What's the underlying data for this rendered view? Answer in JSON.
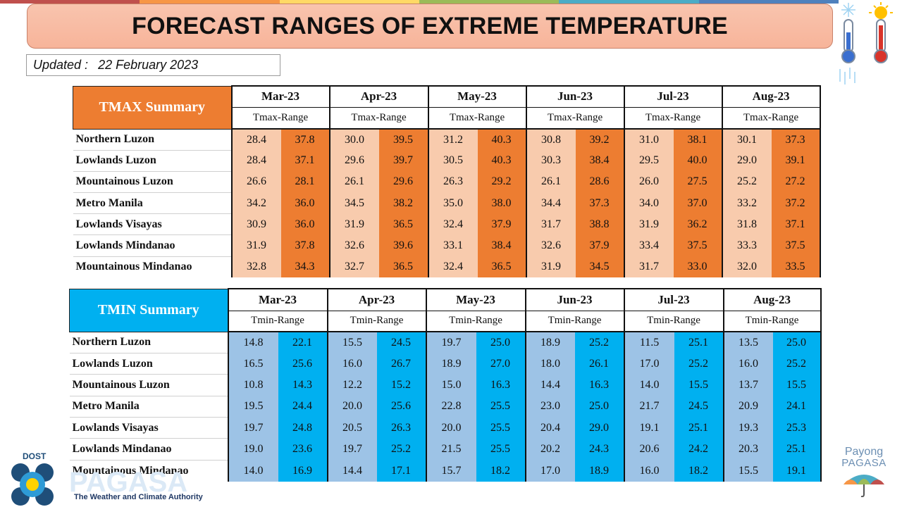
{
  "title": "FORECAST RANGES OF EXTREME TEMPERATURE",
  "updated_label": "Updated :",
  "updated_date": "22 February 2023",
  "months": [
    "Mar-23",
    "Apr-23",
    "May-23",
    "Jun-23",
    "Jul-23",
    "Aug-23"
  ],
  "regions": [
    "Northern Luzon",
    "Lowlands Luzon",
    "Mountainous Luzon",
    "Metro Manila",
    "Lowlands Visayas",
    "Lowlands Mindanao",
    "Mountainous Mindanao"
  ],
  "tmax": {
    "title": "TMAX Summary",
    "range_label": "Tmax-Range",
    "rows": [
      [
        [
          "28.4",
          "37.8"
        ],
        [
          "30.0",
          "39.5"
        ],
        [
          "31.2",
          "40.3"
        ],
        [
          "30.8",
          "39.2"
        ],
        [
          "31.0",
          "38.1"
        ],
        [
          "30.1",
          "37.3"
        ]
      ],
      [
        [
          "28.4",
          "37.1"
        ],
        [
          "29.6",
          "39.7"
        ],
        [
          "30.5",
          "40.3"
        ],
        [
          "30.3",
          "38.4"
        ],
        [
          "29.5",
          "40.0"
        ],
        [
          "29.0",
          "39.1"
        ]
      ],
      [
        [
          "26.6",
          "28.1"
        ],
        [
          "26.1",
          "29.6"
        ],
        [
          "26.3",
          "29.2"
        ],
        [
          "26.1",
          "28.6"
        ],
        [
          "26.0",
          "27.5"
        ],
        [
          "25.2",
          "27.2"
        ]
      ],
      [
        [
          "34.2",
          "36.0"
        ],
        [
          "34.5",
          "38.2"
        ],
        [
          "35.0",
          "38.0"
        ],
        [
          "34.4",
          "37.3"
        ],
        [
          "34.0",
          "37.0"
        ],
        [
          "33.2",
          "37.2"
        ]
      ],
      [
        [
          "30.9",
          "36.0"
        ],
        [
          "31.9",
          "36.5"
        ],
        [
          "32.4",
          "37.9"
        ],
        [
          "31.7",
          "38.8"
        ],
        [
          "31.9",
          "36.2"
        ],
        [
          "31.8",
          "37.1"
        ]
      ],
      [
        [
          "31.9",
          "37.8"
        ],
        [
          "32.6",
          "39.6"
        ],
        [
          "33.1",
          "38.4"
        ],
        [
          "32.6",
          "37.9"
        ],
        [
          "33.4",
          "37.5"
        ],
        [
          "33.3",
          "37.5"
        ]
      ],
      [
        [
          "32.8",
          "34.3"
        ],
        [
          "32.7",
          "36.5"
        ],
        [
          "32.4",
          "36.5"
        ],
        [
          "31.9",
          "34.5"
        ],
        [
          "31.7",
          "33.0"
        ],
        [
          "32.0",
          "33.5"
        ]
      ]
    ]
  },
  "tmin": {
    "title": "TMIN Summary",
    "range_label": "Tmin-Range",
    "rows": [
      [
        [
          "14.8",
          "22.1"
        ],
        [
          "15.5",
          "24.5"
        ],
        [
          "19.7",
          "25.0"
        ],
        [
          "18.9",
          "25.2"
        ],
        [
          "11.5",
          "25.1"
        ],
        [
          "13.5",
          "25.0"
        ]
      ],
      [
        [
          "16.5",
          "25.6"
        ],
        [
          "16.0",
          "26.7"
        ],
        [
          "18.9",
          "27.0"
        ],
        [
          "18.0",
          "26.1"
        ],
        [
          "17.0",
          "25.2"
        ],
        [
          "16.0",
          "25.2"
        ]
      ],
      [
        [
          "10.8",
          "14.3"
        ],
        [
          "12.2",
          "15.2"
        ],
        [
          "15.0",
          "16.3"
        ],
        [
          "14.4",
          "16.3"
        ],
        [
          "14.0",
          "15.5"
        ],
        [
          "13.7",
          "15.5"
        ]
      ],
      [
        [
          "19.5",
          "24.4"
        ],
        [
          "20.0",
          "25.6"
        ],
        [
          "22.8",
          "25.5"
        ],
        [
          "23.0",
          "25.0"
        ],
        [
          "21.7",
          "24.5"
        ],
        [
          "20.9",
          "24.1"
        ]
      ],
      [
        [
          "19.7",
          "24.8"
        ],
        [
          "20.5",
          "26.3"
        ],
        [
          "20.0",
          "25.5"
        ],
        [
          "20.4",
          "29.0"
        ],
        [
          "19.1",
          "25.1"
        ],
        [
          "19.3",
          "25.3"
        ]
      ],
      [
        [
          "19.0",
          "23.6"
        ],
        [
          "19.7",
          "25.2"
        ],
        [
          "21.5",
          "25.5"
        ],
        [
          "20.2",
          "24.3"
        ],
        [
          "20.6",
          "24.2"
        ],
        [
          "20.3",
          "25.1"
        ]
      ],
      [
        [
          "14.0",
          "16.9"
        ],
        [
          "14.4",
          "17.1"
        ],
        [
          "15.7",
          "18.2"
        ],
        [
          "17.0",
          "18.9"
        ],
        [
          "16.0",
          "18.2"
        ],
        [
          "15.5",
          "19.1"
        ]
      ]
    ]
  },
  "logos": {
    "dost_label": "DOST",
    "pagasa_text": "PAGASA",
    "tagline": "The Weather and Climate Authority",
    "payong": "Payong",
    "payong_pagasa": "PAGASA"
  },
  "icons": {
    "corner": "thermometer-cold-hot-icon",
    "dost": "dost-pagasa-logo",
    "umbrella": "payong-umbrella-icon"
  },
  "colors": {
    "tmax_header": "#ed7d31",
    "tmax_low": "#f8cbad",
    "tmax_high": "#ed7d31",
    "tmin_header": "#00b0f0",
    "tmin_low": "#9dc3e6",
    "tmin_high": "#00b0f0",
    "title_bg": "#f7b49a"
  }
}
